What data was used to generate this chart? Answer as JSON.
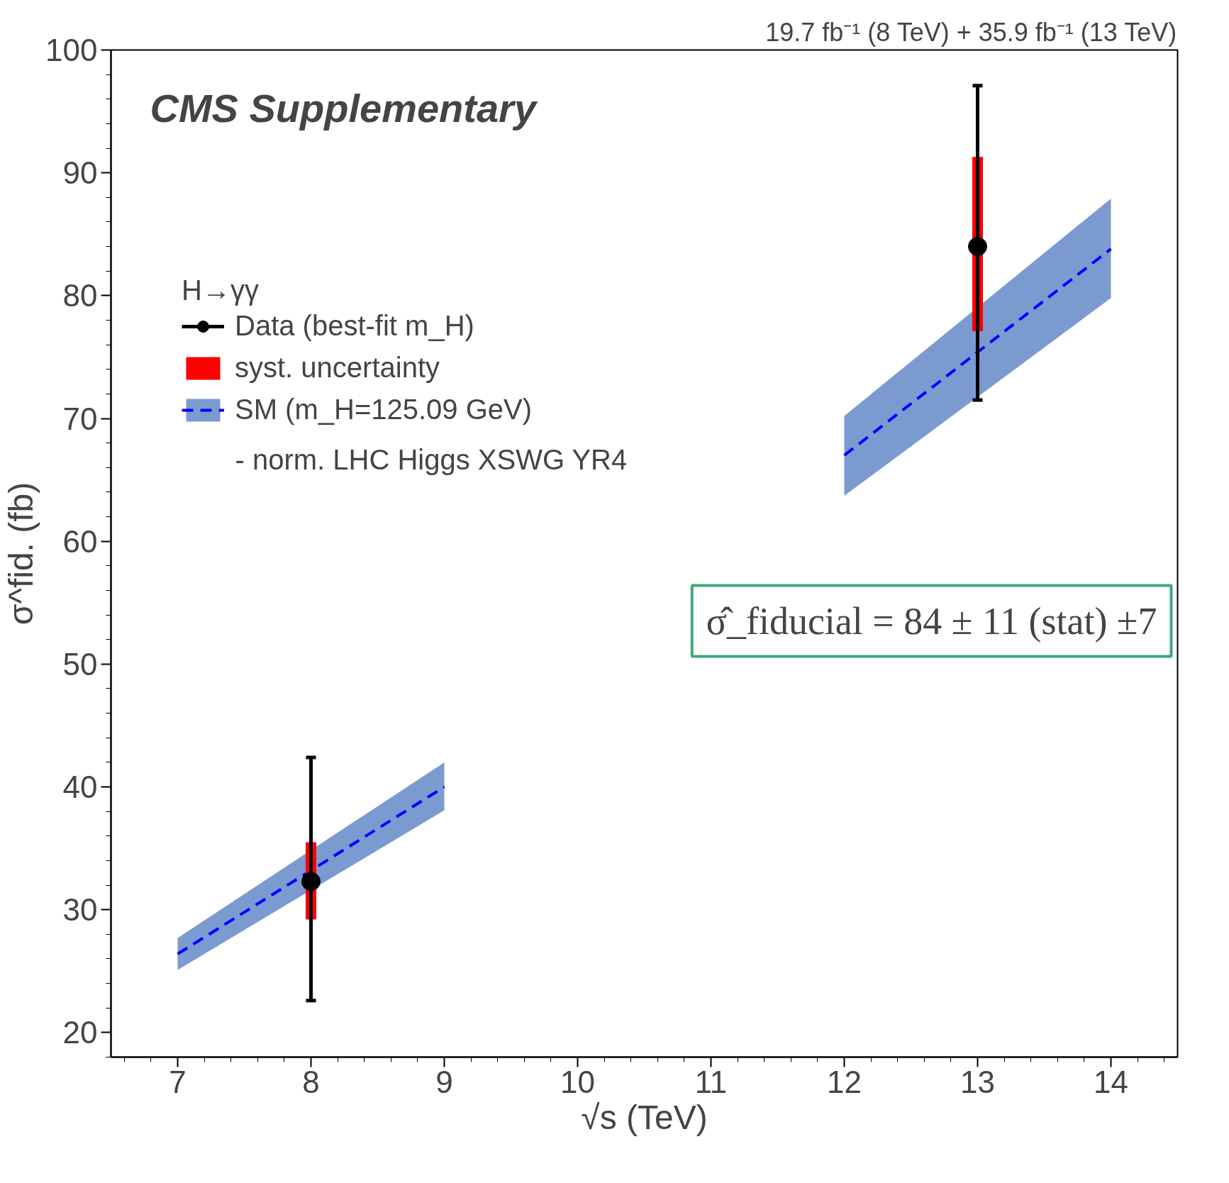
{
  "chart_data": {
    "type": "scatter",
    "title": "19.7 fb⁻¹ (8 TeV) + 35.9 fb⁻¹ (13 TeV)",
    "xlabel": "√s (TeV)",
    "ylabel": "σ^fid. (fb)",
    "legend_title": "H→γγ",
    "x": [
      8,
      13
    ],
    "series": [
      {
        "name": "Data (best-fit m_H)",
        "color": "#000000",
        "marker": "circle",
        "values": [
          32.3,
          84
        ],
        "errors": [
          [
            22.6,
            42.4
          ],
          [
            71.5,
            97.1
          ]
        ]
      },
      {
        "name": "syst. uncertainty",
        "type": "bar",
        "color": "#ff0000",
        "base": [
          29.2,
          77.1
        ],
        "values": [
          6.3,
          14.2
        ]
      },
      {
        "name": "SM (m_H=125.09 GeV)",
        "type": "line",
        "color": "#0000ff",
        "line_style": "dashed",
        "x": [
          7,
          9
        ],
        "values": [
          26.4,
          40.0
        ],
        "lower": [
          25.1,
          38.1
        ],
        "upper": [
          27.7,
          42.0
        ]
      },
      {
        "type": "line",
        "color": "#0000ff",
        "line_style": "dashed",
        "x": [
          12,
          14
        ],
        "values": [
          67.0,
          83.8
        ],
        "lower": [
          63.7,
          79.8
        ],
        "upper": [
          70.2,
          87.9
        ]
      }
    ],
    "annotations": [
      "CMS Supplementary",
      "- norm. LHC Higgs XSWG YR4",
      "σ̂_fiducial = 84 ± 11 (stat) ±7"
    ],
    "xlim": [
      6.5,
      14.5
    ],
    "ylim": [
      18,
      100
    ],
    "xticks": [
      7,
      8,
      9,
      10,
      11,
      12,
      13,
      14
    ],
    "yticks": [
      20,
      30,
      40,
      50,
      60,
      70,
      80,
      90,
      100
    ],
    "grid": false,
    "legend": "top left"
  }
}
